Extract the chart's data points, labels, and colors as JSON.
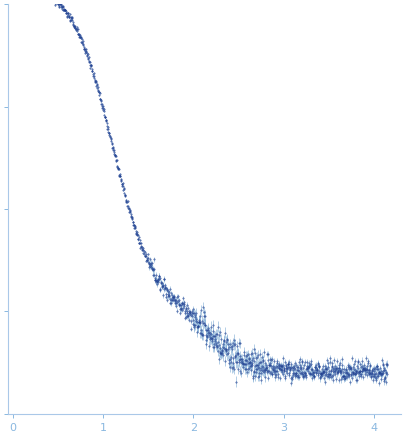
{
  "title": "",
  "xlabel": "",
  "ylabel": "",
  "xlim": [
    -0.05,
    4.3
  ],
  "dot_color": "#1e3d8f",
  "error_color": "#8ab4d8",
  "background_color": "#ffffff",
  "axis_color": "#aac8e8",
  "tick_color": "#8ab8e0",
  "xticks": [
    0,
    1,
    2,
    3,
    4
  ],
  "figsize": [
    4.05,
    4.37
  ],
  "dpi": 100,
  "markersize": 0.8,
  "n_points_dense": 600,
  "n_points_sparse": 500
}
